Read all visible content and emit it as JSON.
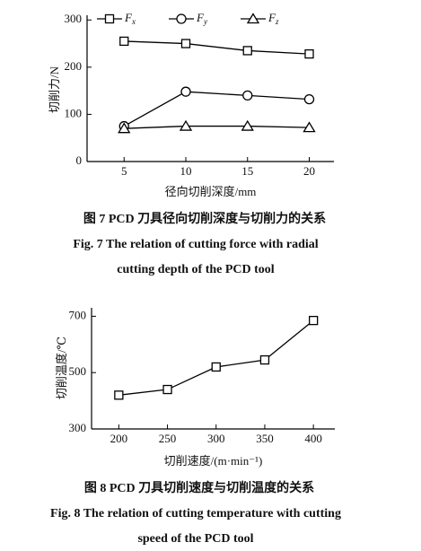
{
  "chart_data": [
    {
      "type": "line",
      "y_label": "切削力/N",
      "x_label": "径向切削深度/mm",
      "x": [
        5,
        10,
        15,
        20
      ],
      "xlim": [
        2,
        22
      ],
      "xticks": [
        5,
        10,
        15,
        20
      ],
      "ylim": [
        0,
        310
      ],
      "yticks": [
        0,
        100,
        200,
        300
      ],
      "series": [
        {
          "name": "Fx",
          "color": "#000000",
          "marker": "square",
          "values": [
            255,
            250,
            235,
            228
          ]
        },
        {
          "name": "Fy",
          "color": "#000000",
          "marker": "circle",
          "values": [
            75,
            148,
            140,
            132
          ]
        },
        {
          "name": "Fz",
          "color": "#000000",
          "marker": "triangle",
          "values": [
            70,
            75,
            75,
            72
          ]
        }
      ],
      "caption": [
        "图 7  PCD 刀具径向切削深度与切削力的关系",
        "Fig. 7   The relation of cutting force with radial",
        "cutting depth of the PCD tool"
      ]
    },
    {
      "type": "line",
      "y_label": "切削温度/℃",
      "x_label": "切削速度/(m·min⁻¹)",
      "x": [
        200,
        250,
        300,
        350,
        400
      ],
      "xlim": [
        172,
        422
      ],
      "xticks": [
        200,
        250,
        300,
        350,
        400
      ],
      "ylim": [
        300,
        730
      ],
      "yticks": [
        300,
        500,
        700
      ],
      "series": [
        {
          "name": null,
          "color": "#000000",
          "marker": "square",
          "values": [
            420,
            440,
            520,
            545,
            685
          ]
        }
      ],
      "caption": [
        "图 8  PCD 刀具切削速度与切削温度的关系",
        "Fig. 8   The relation of cutting temperature with cutting",
        "speed of the PCD tool"
      ]
    }
  ]
}
